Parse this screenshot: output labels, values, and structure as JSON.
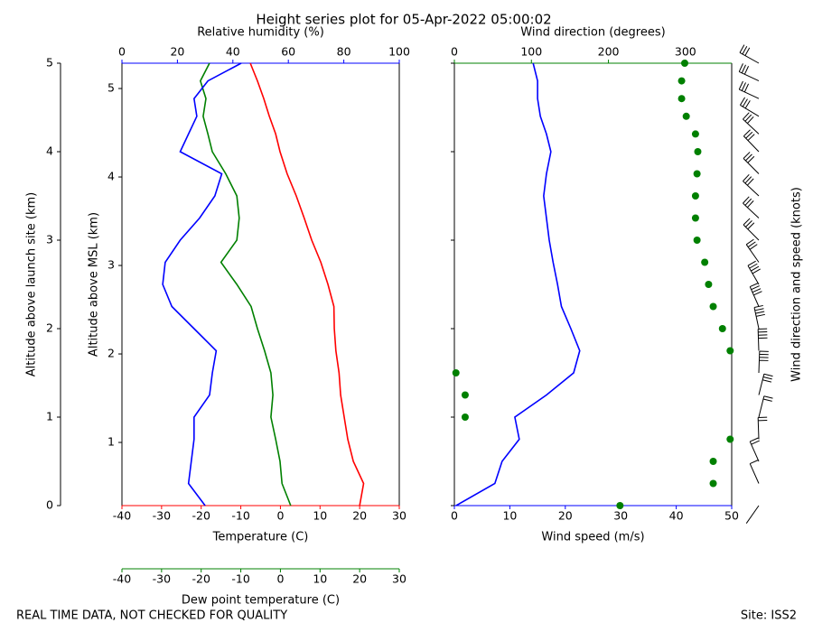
{
  "footer": {
    "left": "REAL TIME DATA, NOT CHECKED FOR QUALITY",
    "right": "Site: ISS2"
  },
  "chart_data": [
    {
      "type": "thermo",
      "title": "Height series plot for 05-Apr-2022 05:00:02",
      "altitude": [
        0,
        0.25,
        0.5,
        0.75,
        1,
        1.25,
        1.5,
        1.75,
        2,
        2.25,
        2.5,
        2.75,
        3,
        3.25,
        3.5,
        3.75,
        4,
        4.2,
        4.4,
        4.6,
        4.8,
        5
      ],
      "ylim": [
        0,
        5
      ],
      "yticks": [
        0,
        1,
        2,
        3,
        4,
        5
      ],
      "ylabel": "Altitude above launch site (km)",
      "y2lim": [
        0.286,
        5.286
      ],
      "y2ticks": [
        1,
        2,
        3,
        4,
        5
      ],
      "y2label": "Altitude above MSL (km)",
      "xlim": [
        -40,
        30
      ],
      "xticks": [
        -40,
        -30,
        -20,
        -10,
        0,
        10,
        20,
        30
      ],
      "xlabel": "Temperature (C)",
      "xcolor": "#ff0000",
      "x2lim": [
        0,
        100
      ],
      "x2ticks": [
        0,
        20,
        40,
        60,
        80,
        100
      ],
      "x2label": "Relative humidity (%)",
      "x2color": "#0000ff",
      "x3lim": [
        -40,
        30
      ],
      "x3ticks": [
        -40,
        -30,
        -20,
        -10,
        0,
        10,
        20,
        30
      ],
      "x3label": "Dew point temperature (C)",
      "x3color": "#008000",
      "series": [
        {
          "color": "#ff0000",
          "axis": "x",
          "values": [
            20,
            21,
            18.4,
            17,
            16.1,
            15.2,
            14.8,
            14,
            13.6,
            13.5,
            12,
            10.2,
            7.9,
            6,
            4,
            1.7,
            -0.1,
            -1.2,
            -2.8,
            -4.2,
            -5.8,
            -7.6
          ]
        },
        {
          "color": "#008000",
          "axis": "x3",
          "values": [
            2.6,
            0.4,
            -0.1,
            -1.2,
            -2.4,
            -1.9,
            -2.4,
            -4,
            -5.8,
            -7.4,
            -11,
            -15,
            -11,
            -10.4,
            -11,
            -13.8,
            -17.2,
            -18.3,
            -19.5,
            -18.8,
            -20.2,
            -17.9
          ]
        },
        {
          "color": "#0000ff",
          "axis": "x2",
          "values": [
            30,
            24,
            25,
            26,
            26,
            31.6,
            32.6,
            34,
            26,
            18,
            14.7,
            15.6,
            21,
            28,
            33.5,
            36,
            21,
            24,
            27,
            26,
            31,
            43
          ]
        }
      ]
    },
    {
      "type": "wind",
      "altitude": [
        0,
        0.25,
        0.5,
        0.75,
        1,
        1.25,
        1.5,
        1.75,
        2,
        2.25,
        2.5,
        2.75,
        3,
        3.25,
        3.5,
        3.75,
        4,
        4.2,
        4.4,
        4.6,
        4.8,
        5
      ],
      "ylim": [
        0,
        5
      ],
      "yticks": [
        0,
        1,
        2,
        3,
        4,
        5
      ],
      "xlim": [
        0,
        50
      ],
      "xticks": [
        0,
        10,
        20,
        30,
        40,
        50
      ],
      "xlabel": "Wind speed (m/s)",
      "xcolor": "#0000ff",
      "x2lim": [
        0,
        360
      ],
      "x2ticks": [
        0,
        100,
        200,
        300
      ],
      "x2label": "Wind direction (degrees)",
      "x2color": "#008000",
      "barb_label": "Wind direction and speed (knots)",
      "series": [
        {
          "color": "#0000ff",
          "axis": "x",
          "style": "line",
          "values": [
            0.3,
            7.3,
            8.6,
            11.7,
            10.9,
            16.6,
            21.5,
            22.6,
            21,
            19.3,
            18.6,
            17.8,
            17.1,
            16.6,
            16.1,
            16.6,
            17.4,
            16.6,
            15.5,
            15,
            15,
            14.2
          ]
        },
        {
          "color": "#008000",
          "axis": "x2",
          "style": "dots",
          "values": [
            215,
            336,
            336,
            358,
            14,
            14,
            2,
            358,
            348,
            336,
            330,
            325,
            315,
            313,
            313,
            315,
            316,
            313,
            301,
            295,
            295,
            299
          ]
        }
      ]
    }
  ]
}
